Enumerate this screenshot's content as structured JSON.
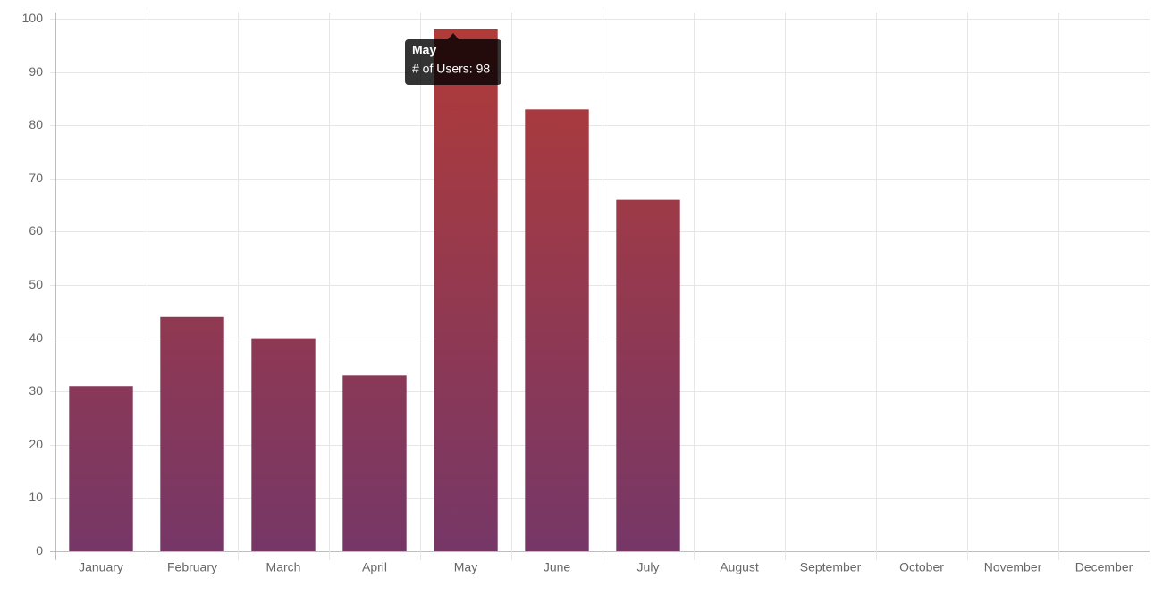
{
  "chart_data": {
    "type": "bar",
    "categories": [
      "January",
      "February",
      "March",
      "April",
      "May",
      "June",
      "July",
      "August",
      "September",
      "October",
      "November",
      "December"
    ],
    "series": [
      {
        "name": "# of Users",
        "gradient": [
          "#b23b37",
          "#763767"
        ],
        "values": [
          31,
          44,
          40,
          33,
          98,
          83,
          66,
          null,
          null,
          null,
          null,
          null
        ]
      }
    ],
    "ylim": [
      0,
      100
    ],
    "yticks": [
      0,
      10,
      20,
      30,
      40,
      50,
      60,
      70,
      80,
      90,
      100
    ],
    "grid": true,
    "tooltip": {
      "title": "May",
      "text": "# of Users: 98"
    }
  }
}
